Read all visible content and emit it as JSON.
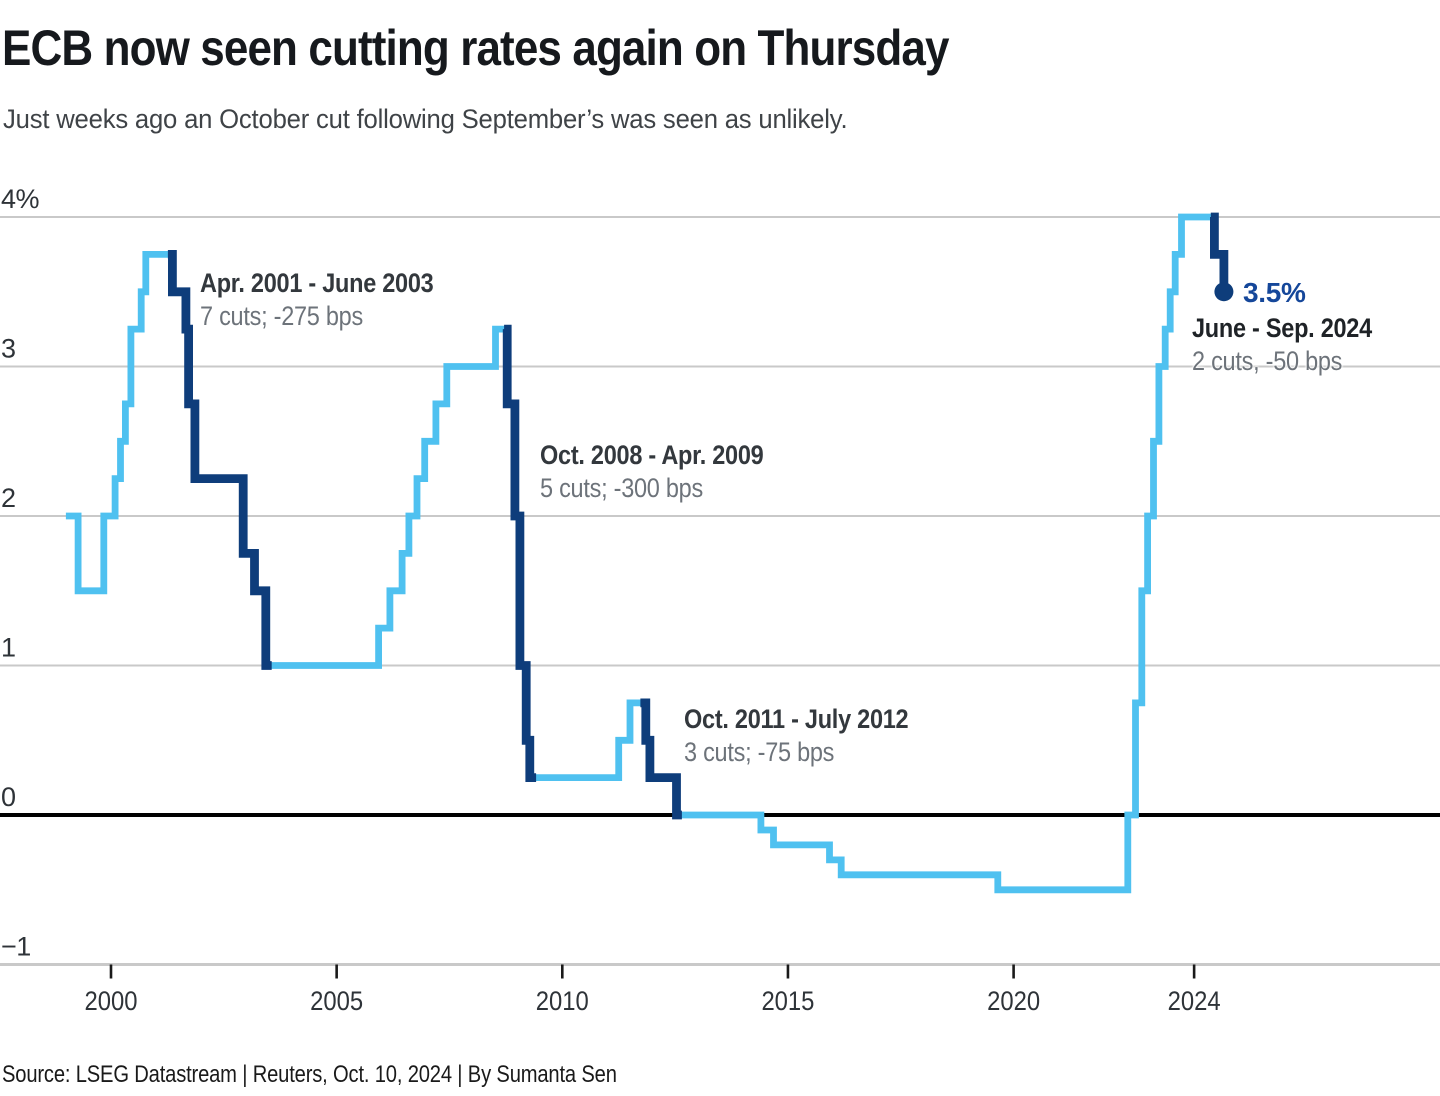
{
  "header": {
    "title": "ECB now seen cutting rates again on Thursday",
    "subtitle": "Just weeks ago an October cut following September’s was seen as unlikely."
  },
  "footer": {
    "source": "Source: LSEG Datastream | Reuters, Oct. 10, 2024 | By Sumanta Sen"
  },
  "chart_data": {
    "type": "line",
    "style": "step",
    "title": "ECB now seen cutting rates again on Thursday",
    "unit": "%",
    "grid": true,
    "grid_color": "#C9C9C9",
    "zero_line_color": "#000000",
    "axis_label_color": "#2e3338",
    "x_axis": {
      "ticks": [
        {
          "label": "2000",
          "year": 2000
        },
        {
          "label": "2005",
          "year": 2005
        },
        {
          "label": "2010",
          "year": 2010
        },
        {
          "label": "2015",
          "year": 2015
        },
        {
          "label": "2020",
          "year": 2020
        },
        {
          "label": "2024",
          "year": 2024
        }
      ],
      "range": [
        1998.95,
        2029.4
      ]
    },
    "y_axis": {
      "ticks": [
        {
          "label": "4%",
          "value": 4
        },
        {
          "label": "3",
          "value": 3
        },
        {
          "label": "2",
          "value": 2
        },
        {
          "label": "1",
          "value": 1
        },
        {
          "label": "0",
          "value": 0
        },
        {
          "label": "−1",
          "value": -1
        }
      ],
      "range": [
        -1.35,
        4.25
      ]
    },
    "base_series": {
      "color": "#4FC1F0",
      "points": [
        [
          1999.0,
          2.0
        ],
        [
          1999.27,
          1.5
        ],
        [
          1999.84,
          2.0
        ],
        [
          2000.09,
          2.25
        ],
        [
          2000.21,
          2.5
        ],
        [
          2000.32,
          2.75
        ],
        [
          2000.44,
          3.25
        ],
        [
          2000.67,
          3.5
        ],
        [
          2000.77,
          3.75
        ],
        [
          2001.36,
          3.5
        ],
        [
          2001.66,
          3.25
        ],
        [
          2001.72,
          2.75
        ],
        [
          2001.86,
          2.25
        ],
        [
          2002.93,
          1.75
        ],
        [
          2003.18,
          1.5
        ],
        [
          2003.43,
          1.0
        ],
        [
          2005.93,
          1.25
        ],
        [
          2006.18,
          1.5
        ],
        [
          2006.45,
          1.75
        ],
        [
          2006.6,
          2.0
        ],
        [
          2006.78,
          2.25
        ],
        [
          2006.95,
          2.5
        ],
        [
          2007.2,
          2.75
        ],
        [
          2007.44,
          3.0
        ],
        [
          2008.52,
          3.25
        ],
        [
          2008.78,
          2.75
        ],
        [
          2008.95,
          2.0
        ],
        [
          2009.06,
          1.0
        ],
        [
          2009.2,
          0.5
        ],
        [
          2009.28,
          0.25
        ],
        [
          2011.25,
          0.5
        ],
        [
          2011.5,
          0.75
        ],
        [
          2011.85,
          0.5
        ],
        [
          2011.94,
          0.25
        ],
        [
          2012.53,
          0.0
        ],
        [
          2014.4,
          -0.1
        ],
        [
          2014.68,
          -0.2
        ],
        [
          2015.92,
          -0.3
        ],
        [
          2016.18,
          -0.4
        ],
        [
          2019.65,
          -0.5
        ],
        [
          2022.53,
          0.0
        ],
        [
          2022.7,
          0.75
        ],
        [
          2022.84,
          1.5
        ],
        [
          2022.97,
          2.0
        ],
        [
          2023.1,
          2.5
        ],
        [
          2023.22,
          3.0
        ],
        [
          2023.36,
          3.25
        ],
        [
          2023.47,
          3.5
        ],
        [
          2023.58,
          3.75
        ],
        [
          2023.72,
          4.0
        ],
        [
          2024.45,
          3.75
        ],
        [
          2024.66,
          3.5
        ]
      ]
    },
    "cut_segments": [
      {
        "name": "Apr. 2001 - June 2003",
        "detail": "7 cuts; -275 bps",
        "color": "#0E3D7B",
        "points": [
          [
            2001.26,
            3.75
          ],
          [
            2001.36,
            3.5
          ],
          [
            2001.66,
            3.25
          ],
          [
            2001.72,
            2.75
          ],
          [
            2001.86,
            2.25
          ],
          [
            2002.93,
            1.75
          ],
          [
            2003.18,
            1.5
          ],
          [
            2003.43,
            1.0
          ],
          [
            2003.56,
            1.0
          ]
        ]
      },
      {
        "name": "Oct. 2008 - Apr. 2009",
        "detail": "5 cuts; -300 bps",
        "color": "#0E3D7B",
        "points": [
          [
            2008.71,
            3.25
          ],
          [
            2008.78,
            2.75
          ],
          [
            2008.95,
            2.0
          ],
          [
            2009.06,
            1.0
          ],
          [
            2009.2,
            0.5
          ],
          [
            2009.28,
            0.25
          ],
          [
            2009.42,
            0.25
          ]
        ]
      },
      {
        "name": "Oct. 2011 - July 2012",
        "detail": "3 cuts; -75 bps",
        "color": "#0E3D7B",
        "points": [
          [
            2011.73,
            0.75
          ],
          [
            2011.85,
            0.5
          ],
          [
            2011.94,
            0.25
          ],
          [
            2012.53,
            0.0
          ],
          [
            2012.65,
            0.0
          ]
        ]
      },
      {
        "name": "June - Sep. 2024",
        "detail": "2 cuts, -50 bps",
        "color": "#0E3D7B",
        "end_dot": true,
        "end_label": "3.5%",
        "end_label_color": "#15479A",
        "points": [
          [
            2024.37,
            4.0
          ],
          [
            2024.45,
            3.75
          ],
          [
            2024.66,
            3.5
          ]
        ]
      }
    ]
  }
}
